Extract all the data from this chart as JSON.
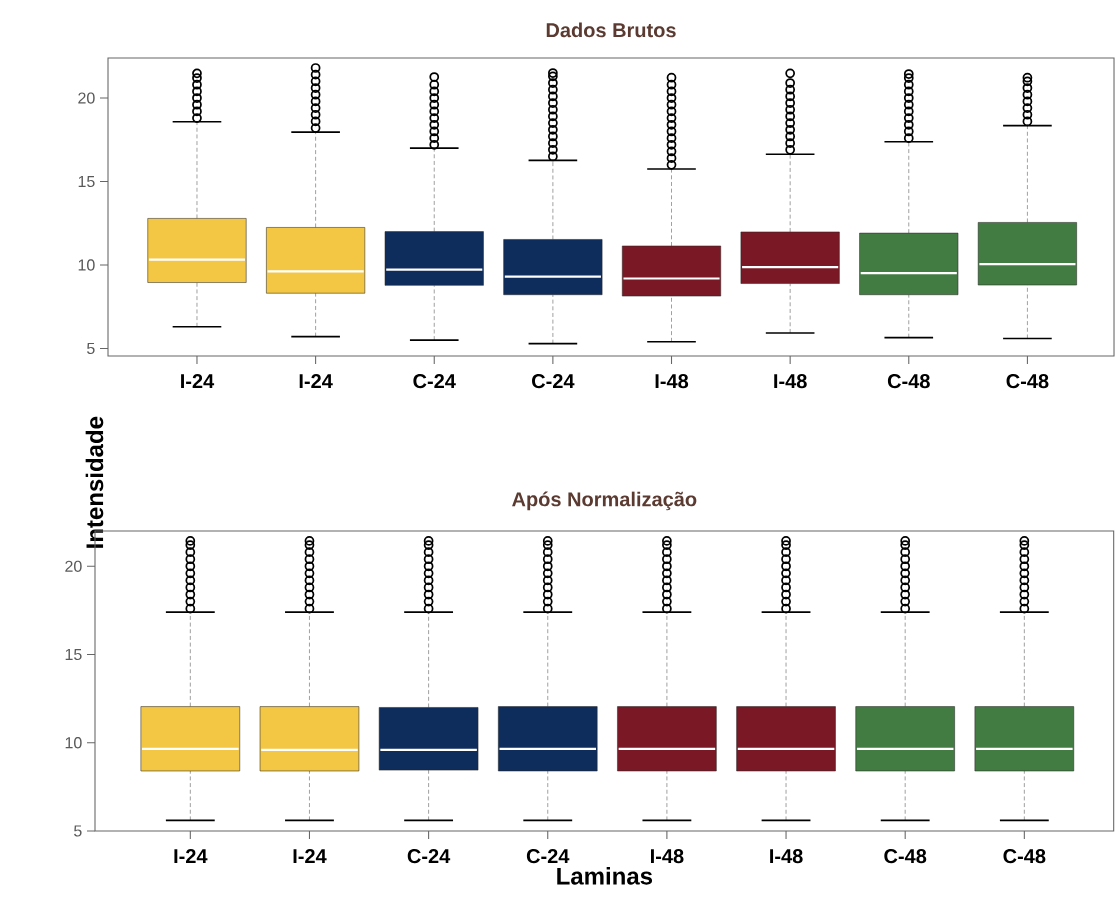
{
  "chart_data": [
    {
      "type": "box",
      "title": "Dados Brutos",
      "ylabel": "Intensidade",
      "categories": [
        "I-24",
        "I-24",
        "C-24",
        "C-24",
        "I-48",
        "I-48",
        "C-48",
        "C-48"
      ],
      "colors": [
        "#f3c644",
        "#f3c644",
        "#0f2d5c",
        "#0f2d5c",
        "#7a1825",
        "#7a1825",
        "#437c42",
        "#437c42"
      ],
      "ylim": [
        4.55,
        22.4
      ],
      "yticks": [
        5,
        10,
        15,
        20
      ],
      "boxes": [
        {
          "low": 6.3,
          "q1": 8.95,
          "median": 10.32,
          "q3": 12.79,
          "high": 18.58,
          "outliers": [
            18.8,
            19.2,
            19.6,
            20.0,
            20.4,
            20.8,
            21.2,
            21.48
          ]
        },
        {
          "low": 5.71,
          "q1": 8.31,
          "median": 9.62,
          "q3": 12.25,
          "high": 17.96,
          "outliers": [
            18.2,
            18.6,
            19.0,
            19.4,
            19.8,
            20.2,
            20.6,
            21.0,
            21.4,
            21.8
          ]
        },
        {
          "low": 5.5,
          "q1": 8.78,
          "median": 9.72,
          "q3": 12.0,
          "high": 17.0,
          "outliers": [
            17.2,
            17.6,
            18.0,
            18.4,
            18.8,
            19.2,
            19.6,
            20.0,
            20.4,
            20.8,
            21.26
          ]
        },
        {
          "low": 5.29,
          "q1": 8.22,
          "median": 9.3,
          "q3": 11.53,
          "high": 16.27,
          "outliers": [
            16.5,
            16.9,
            17.3,
            17.7,
            18.1,
            18.5,
            18.9,
            19.3,
            19.7,
            20.1,
            20.5,
            20.9,
            21.3,
            21.5
          ]
        },
        {
          "low": 5.4,
          "q1": 8.14,
          "median": 9.19,
          "q3": 11.14,
          "high": 15.75,
          "outliers": [
            16.0,
            16.4,
            16.8,
            17.2,
            17.6,
            18.0,
            18.4,
            18.8,
            19.2,
            19.6,
            20.0,
            20.4,
            20.8,
            21.22
          ]
        },
        {
          "low": 5.93,
          "q1": 8.89,
          "median": 9.87,
          "q3": 11.98,
          "high": 16.63,
          "outliers": [
            16.9,
            17.3,
            17.7,
            18.1,
            18.5,
            18.9,
            19.3,
            19.7,
            20.1,
            20.5,
            20.9,
            21.48
          ]
        },
        {
          "low": 5.65,
          "q1": 8.22,
          "median": 9.51,
          "q3": 11.91,
          "high": 17.38,
          "outliers": [
            17.6,
            18.0,
            18.4,
            18.8,
            19.2,
            19.6,
            20.0,
            20.4,
            20.8,
            21.2,
            21.44
          ]
        },
        {
          "low": 5.6,
          "q1": 8.8,
          "median": 10.05,
          "q3": 12.55,
          "high": 18.35,
          "outliers": [
            18.6,
            19.0,
            19.4,
            19.8,
            20.2,
            20.6,
            21.0,
            21.22
          ]
        }
      ]
    },
    {
      "type": "box",
      "title": "Após Normalização",
      "xlabel": "Laminas",
      "categories": [
        "I-24",
        "I-24",
        "C-24",
        "C-24",
        "I-48",
        "I-48",
        "C-48",
        "C-48"
      ],
      "colors": [
        "#f3c644",
        "#f3c644",
        "#0f2d5c",
        "#0f2d5c",
        "#7a1825",
        "#7a1825",
        "#437c42",
        "#437c42"
      ],
      "ylim": [
        5,
        22
      ],
      "yticks": [
        5,
        10,
        15,
        20
      ],
      "boxes": [
        {
          "low": 5.6,
          "q1": 8.4,
          "median": 9.65,
          "q3": 12.05,
          "high": 17.4,
          "outliers": [
            17.6,
            18.0,
            18.4,
            18.8,
            19.2,
            19.6,
            20.0,
            20.4,
            20.8,
            21.2,
            21.44
          ]
        },
        {
          "low": 5.6,
          "q1": 8.4,
          "median": 9.6,
          "q3": 12.05,
          "high": 17.4,
          "outliers": [
            17.6,
            18.0,
            18.4,
            18.8,
            19.2,
            19.6,
            20.0,
            20.4,
            20.8,
            21.2,
            21.44
          ]
        },
        {
          "low": 5.6,
          "q1": 8.45,
          "median": 9.6,
          "q3": 12.0,
          "high": 17.4,
          "outliers": [
            17.6,
            18.0,
            18.4,
            18.8,
            19.2,
            19.6,
            20.0,
            20.4,
            20.8,
            21.2,
            21.44
          ]
        },
        {
          "low": 5.6,
          "q1": 8.4,
          "median": 9.65,
          "q3": 12.05,
          "high": 17.4,
          "outliers": [
            17.6,
            18.0,
            18.4,
            18.8,
            19.2,
            19.6,
            20.0,
            20.4,
            20.8,
            21.2,
            21.44
          ]
        },
        {
          "low": 5.6,
          "q1": 8.4,
          "median": 9.65,
          "q3": 12.05,
          "high": 17.4,
          "outliers": [
            17.6,
            18.0,
            18.4,
            18.8,
            19.2,
            19.6,
            20.0,
            20.4,
            20.8,
            21.2,
            21.44
          ]
        },
        {
          "low": 5.6,
          "q1": 8.4,
          "median": 9.65,
          "q3": 12.05,
          "high": 17.4,
          "outliers": [
            17.6,
            18.0,
            18.4,
            18.8,
            19.2,
            19.6,
            20.0,
            20.4,
            20.8,
            21.2,
            21.44
          ]
        },
        {
          "low": 5.6,
          "q1": 8.4,
          "median": 9.65,
          "q3": 12.05,
          "high": 17.4,
          "outliers": [
            17.6,
            18.0,
            18.4,
            18.8,
            19.2,
            19.6,
            20.0,
            20.4,
            20.8,
            21.2,
            21.44
          ]
        },
        {
          "low": 5.6,
          "q1": 8.4,
          "median": 9.65,
          "q3": 12.05,
          "high": 17.4,
          "outliers": [
            17.6,
            18.0,
            18.4,
            18.8,
            19.2,
            19.6,
            20.0,
            20.4,
            20.8,
            21.2,
            21.44
          ]
        }
      ]
    }
  ]
}
